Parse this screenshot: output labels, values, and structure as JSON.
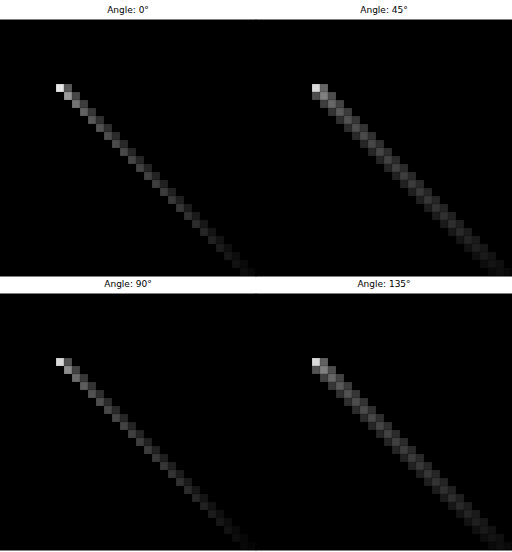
{
  "chart_data": [
    {
      "type": "heatmap",
      "title": "Angle: 0°",
      "xlim": [
        0,
        32
      ],
      "ylim": [
        0,
        32
      ],
      "zlim": [
        0,
        1
      ],
      "tick_labels": false,
      "cells": [
        [
          7,
          8,
          0.9
        ],
        [
          8,
          8,
          0.35
        ],
        [
          8,
          9,
          0.6
        ],
        [
          9,
          9,
          0.28
        ],
        [
          9,
          10,
          0.45
        ],
        [
          10,
          10,
          0.24
        ],
        [
          10,
          11,
          0.38
        ],
        [
          11,
          11,
          0.21
        ],
        [
          11,
          12,
          0.34
        ],
        [
          12,
          12,
          0.19
        ],
        [
          12,
          13,
          0.32
        ],
        [
          13,
          13,
          0.18
        ],
        [
          13,
          14,
          0.3
        ],
        [
          14,
          14,
          0.17
        ],
        [
          14,
          15,
          0.29
        ],
        [
          15,
          15,
          0.16
        ],
        [
          15,
          16,
          0.28
        ],
        [
          16,
          16,
          0.15
        ],
        [
          16,
          17,
          0.27
        ],
        [
          17,
          17,
          0.15
        ],
        [
          17,
          18,
          0.26
        ],
        [
          18,
          18,
          0.14
        ],
        [
          18,
          19,
          0.25
        ],
        [
          19,
          19,
          0.14
        ],
        [
          19,
          20,
          0.24
        ],
        [
          20,
          20,
          0.13
        ],
        [
          20,
          21,
          0.23
        ],
        [
          21,
          21,
          0.13
        ],
        [
          21,
          22,
          0.22
        ],
        [
          22,
          22,
          0.12
        ],
        [
          22,
          23,
          0.21
        ],
        [
          23,
          23,
          0.11
        ],
        [
          23,
          24,
          0.19
        ],
        [
          24,
          24,
          0.1
        ],
        [
          24,
          25,
          0.17
        ],
        [
          25,
          25,
          0.09
        ],
        [
          25,
          26,
          0.15
        ],
        [
          26,
          26,
          0.08
        ],
        [
          26,
          27,
          0.13
        ],
        [
          27,
          27,
          0.07
        ],
        [
          27,
          28,
          0.11
        ],
        [
          28,
          28,
          0.06
        ],
        [
          28,
          29,
          0.09
        ],
        [
          29,
          29,
          0.05
        ],
        [
          29,
          30,
          0.07
        ],
        [
          30,
          30,
          0.04
        ],
        [
          30,
          31,
          0.05
        ],
        [
          31,
          31,
          0.03
        ]
      ]
    },
    {
      "type": "heatmap",
      "title": "Angle: 45°",
      "xlim": [
        0,
        32
      ],
      "ylim": [
        0,
        32
      ],
      "zlim": [
        0,
        1
      ],
      "tick_labels": false,
      "cells": [
        [
          7,
          8,
          0.85
        ],
        [
          8,
          8,
          0.4
        ],
        [
          7,
          9,
          0.3
        ],
        [
          8,
          9,
          0.5
        ],
        [
          9,
          9,
          0.3
        ],
        [
          8,
          10,
          0.24
        ],
        [
          9,
          10,
          0.4
        ],
        [
          10,
          10,
          0.26
        ],
        [
          9,
          11,
          0.2
        ],
        [
          10,
          11,
          0.35
        ],
        [
          11,
          11,
          0.23
        ],
        [
          10,
          12,
          0.18
        ],
        [
          11,
          12,
          0.32
        ],
        [
          12,
          12,
          0.21
        ],
        [
          11,
          13,
          0.17
        ],
        [
          12,
          13,
          0.3
        ],
        [
          13,
          13,
          0.2
        ],
        [
          12,
          14,
          0.16
        ],
        [
          13,
          14,
          0.29
        ],
        [
          14,
          14,
          0.19
        ],
        [
          13,
          15,
          0.15
        ],
        [
          14,
          15,
          0.28
        ],
        [
          15,
          15,
          0.18
        ],
        [
          14,
          16,
          0.15
        ],
        [
          15,
          16,
          0.27
        ],
        [
          16,
          16,
          0.18
        ],
        [
          15,
          17,
          0.14
        ],
        [
          16,
          17,
          0.26
        ],
        [
          17,
          17,
          0.17
        ],
        [
          16,
          18,
          0.14
        ],
        [
          17,
          18,
          0.25
        ],
        [
          18,
          18,
          0.17
        ],
        [
          17,
          19,
          0.13
        ],
        [
          18,
          19,
          0.24
        ],
        [
          19,
          19,
          0.16
        ],
        [
          18,
          20,
          0.13
        ],
        [
          19,
          20,
          0.23
        ],
        [
          20,
          20,
          0.16
        ],
        [
          19,
          21,
          0.12
        ],
        [
          20,
          21,
          0.22
        ],
        [
          21,
          21,
          0.15
        ],
        [
          20,
          22,
          0.12
        ],
        [
          21,
          22,
          0.21
        ],
        [
          22,
          22,
          0.15
        ],
        [
          21,
          23,
          0.11
        ],
        [
          22,
          23,
          0.2
        ],
        [
          23,
          23,
          0.14
        ],
        [
          22,
          24,
          0.11
        ],
        [
          23,
          24,
          0.19
        ],
        [
          24,
          24,
          0.13
        ],
        [
          23,
          25,
          0.1
        ],
        [
          24,
          25,
          0.18
        ],
        [
          25,
          25,
          0.12
        ],
        [
          24,
          26,
          0.09
        ],
        [
          25,
          26,
          0.16
        ],
        [
          26,
          26,
          0.11
        ],
        [
          25,
          27,
          0.08
        ],
        [
          26,
          27,
          0.14
        ],
        [
          27,
          27,
          0.1
        ],
        [
          26,
          28,
          0.07
        ],
        [
          27,
          28,
          0.12
        ],
        [
          28,
          28,
          0.09
        ],
        [
          27,
          29,
          0.06
        ],
        [
          28,
          29,
          0.1
        ],
        [
          29,
          29,
          0.07
        ],
        [
          28,
          30,
          0.05
        ],
        [
          29,
          30,
          0.08
        ],
        [
          30,
          30,
          0.06
        ],
        [
          29,
          31,
          0.04
        ],
        [
          30,
          31,
          0.06
        ],
        [
          31,
          31,
          0.04
        ]
      ]
    },
    {
      "type": "heatmap",
      "title": "Angle: 90°",
      "xlim": [
        0,
        32
      ],
      "ylim": [
        0,
        32
      ],
      "zlim": [
        0,
        1
      ],
      "tick_labels": false,
      "cells": [
        [
          7,
          8,
          0.85
        ],
        [
          8,
          8,
          0.32
        ],
        [
          8,
          9,
          0.55
        ],
        [
          9,
          9,
          0.26
        ],
        [
          9,
          10,
          0.42
        ],
        [
          10,
          10,
          0.22
        ],
        [
          10,
          11,
          0.36
        ],
        [
          11,
          11,
          0.2
        ],
        [
          11,
          12,
          0.32
        ],
        [
          12,
          12,
          0.18
        ],
        [
          12,
          13,
          0.3
        ],
        [
          13,
          13,
          0.17
        ],
        [
          13,
          14,
          0.28
        ],
        [
          14,
          14,
          0.16
        ],
        [
          14,
          15,
          0.27
        ],
        [
          15,
          15,
          0.15
        ],
        [
          15,
          16,
          0.26
        ],
        [
          16,
          16,
          0.14
        ],
        [
          16,
          17,
          0.25
        ],
        [
          17,
          17,
          0.14
        ],
        [
          17,
          18,
          0.24
        ],
        [
          18,
          18,
          0.13
        ],
        [
          18,
          19,
          0.23
        ],
        [
          19,
          19,
          0.13
        ],
        [
          19,
          20,
          0.22
        ],
        [
          20,
          20,
          0.12
        ],
        [
          20,
          21,
          0.21
        ],
        [
          21,
          21,
          0.12
        ],
        [
          21,
          22,
          0.2
        ],
        [
          22,
          22,
          0.11
        ],
        [
          22,
          23,
          0.19
        ],
        [
          23,
          23,
          0.1
        ],
        [
          23,
          24,
          0.17
        ],
        [
          24,
          24,
          0.09
        ],
        [
          24,
          25,
          0.15
        ],
        [
          25,
          25,
          0.08
        ],
        [
          25,
          26,
          0.13
        ],
        [
          26,
          26,
          0.07
        ],
        [
          26,
          27,
          0.11
        ],
        [
          27,
          27,
          0.06
        ],
        [
          27,
          28,
          0.09
        ],
        [
          28,
          28,
          0.05
        ],
        [
          28,
          29,
          0.07
        ],
        [
          29,
          29,
          0.04
        ],
        [
          29,
          30,
          0.05
        ],
        [
          30,
          30,
          0.03
        ],
        [
          30,
          31,
          0.03
        ],
        [
          31,
          31,
          0.02
        ]
      ]
    },
    {
      "type": "heatmap",
      "title": "Angle: 135°",
      "xlim": [
        0,
        32
      ],
      "ylim": [
        0,
        32
      ],
      "zlim": [
        0,
        1
      ],
      "tick_labels": false,
      "cells": [
        [
          7,
          8,
          0.85
        ],
        [
          8,
          8,
          0.38
        ],
        [
          7,
          9,
          0.32
        ],
        [
          8,
          9,
          0.5
        ],
        [
          9,
          9,
          0.3
        ],
        [
          8,
          10,
          0.25
        ],
        [
          9,
          10,
          0.4
        ],
        [
          10,
          10,
          0.26
        ],
        [
          9,
          11,
          0.21
        ],
        [
          10,
          11,
          0.35
        ],
        [
          11,
          11,
          0.23
        ],
        [
          10,
          12,
          0.19
        ],
        [
          11,
          12,
          0.32
        ],
        [
          12,
          12,
          0.21
        ],
        [
          11,
          13,
          0.18
        ],
        [
          12,
          13,
          0.3
        ],
        [
          13,
          13,
          0.2
        ],
        [
          12,
          14,
          0.17
        ],
        [
          13,
          14,
          0.29
        ],
        [
          14,
          14,
          0.19
        ],
        [
          13,
          15,
          0.16
        ],
        [
          14,
          15,
          0.28
        ],
        [
          15,
          15,
          0.18
        ],
        [
          14,
          16,
          0.15
        ],
        [
          15,
          16,
          0.27
        ],
        [
          16,
          16,
          0.18
        ],
        [
          15,
          17,
          0.15
        ],
        [
          16,
          17,
          0.26
        ],
        [
          17,
          17,
          0.17
        ],
        [
          16,
          18,
          0.14
        ],
        [
          17,
          18,
          0.25
        ],
        [
          18,
          18,
          0.17
        ],
        [
          17,
          19,
          0.14
        ],
        [
          18,
          19,
          0.24
        ],
        [
          19,
          19,
          0.16
        ],
        [
          18,
          20,
          0.13
        ],
        [
          19,
          20,
          0.23
        ],
        [
          20,
          20,
          0.16
        ],
        [
          19,
          21,
          0.13
        ],
        [
          20,
          21,
          0.22
        ],
        [
          21,
          21,
          0.15
        ],
        [
          20,
          22,
          0.12
        ],
        [
          21,
          22,
          0.21
        ],
        [
          22,
          22,
          0.15
        ],
        [
          21,
          23,
          0.12
        ],
        [
          22,
          23,
          0.2
        ],
        [
          23,
          23,
          0.14
        ],
        [
          22,
          24,
          0.11
        ],
        [
          23,
          24,
          0.19
        ],
        [
          24,
          24,
          0.13
        ],
        [
          23,
          25,
          0.1
        ],
        [
          24,
          25,
          0.18
        ],
        [
          25,
          25,
          0.12
        ],
        [
          24,
          26,
          0.09
        ],
        [
          25,
          26,
          0.16
        ],
        [
          26,
          26,
          0.11
        ],
        [
          25,
          27,
          0.08
        ],
        [
          26,
          27,
          0.14
        ],
        [
          27,
          27,
          0.1
        ],
        [
          26,
          28,
          0.07
        ],
        [
          27,
          28,
          0.12
        ],
        [
          28,
          28,
          0.09
        ],
        [
          27,
          29,
          0.06
        ],
        [
          28,
          29,
          0.1
        ],
        [
          29,
          29,
          0.07
        ],
        [
          28,
          30,
          0.05
        ],
        [
          29,
          30,
          0.08
        ],
        [
          30,
          30,
          0.06
        ],
        [
          29,
          31,
          0.04
        ],
        [
          30,
          31,
          0.06
        ],
        [
          31,
          31,
          0.04
        ]
      ]
    }
  ]
}
